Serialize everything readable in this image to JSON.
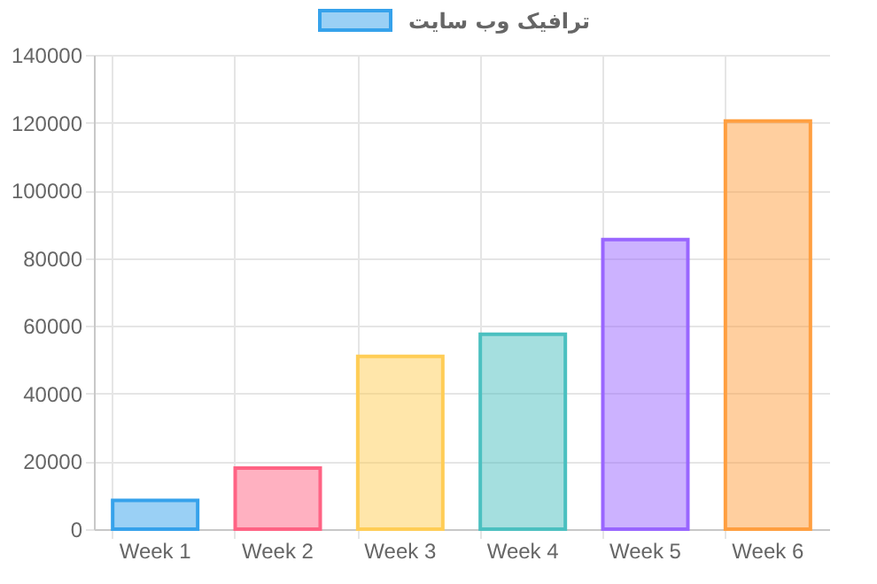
{
  "chart_data": {
    "type": "bar",
    "categories": [
      "Week 1",
      "Week 2",
      "Week 3",
      "Week 4",
      "Week 5",
      "Week 6"
    ],
    "series": [
      {
        "name": "ترافیک وب سایت",
        "values": [
          8500,
          18000,
          51000,
          57500,
          85500,
          120500
        ],
        "colors": [
          "#36a2eb",
          "#ff6384",
          "#ffcd56",
          "#4bc0c0",
          "#9966ff",
          "#ff9f40"
        ]
      }
    ],
    "ylim": [
      0,
      140000
    ],
    "yticks": [
      0,
      20000,
      40000,
      60000,
      80000,
      100000,
      120000,
      140000
    ],
    "grid": true,
    "legend": "top"
  }
}
